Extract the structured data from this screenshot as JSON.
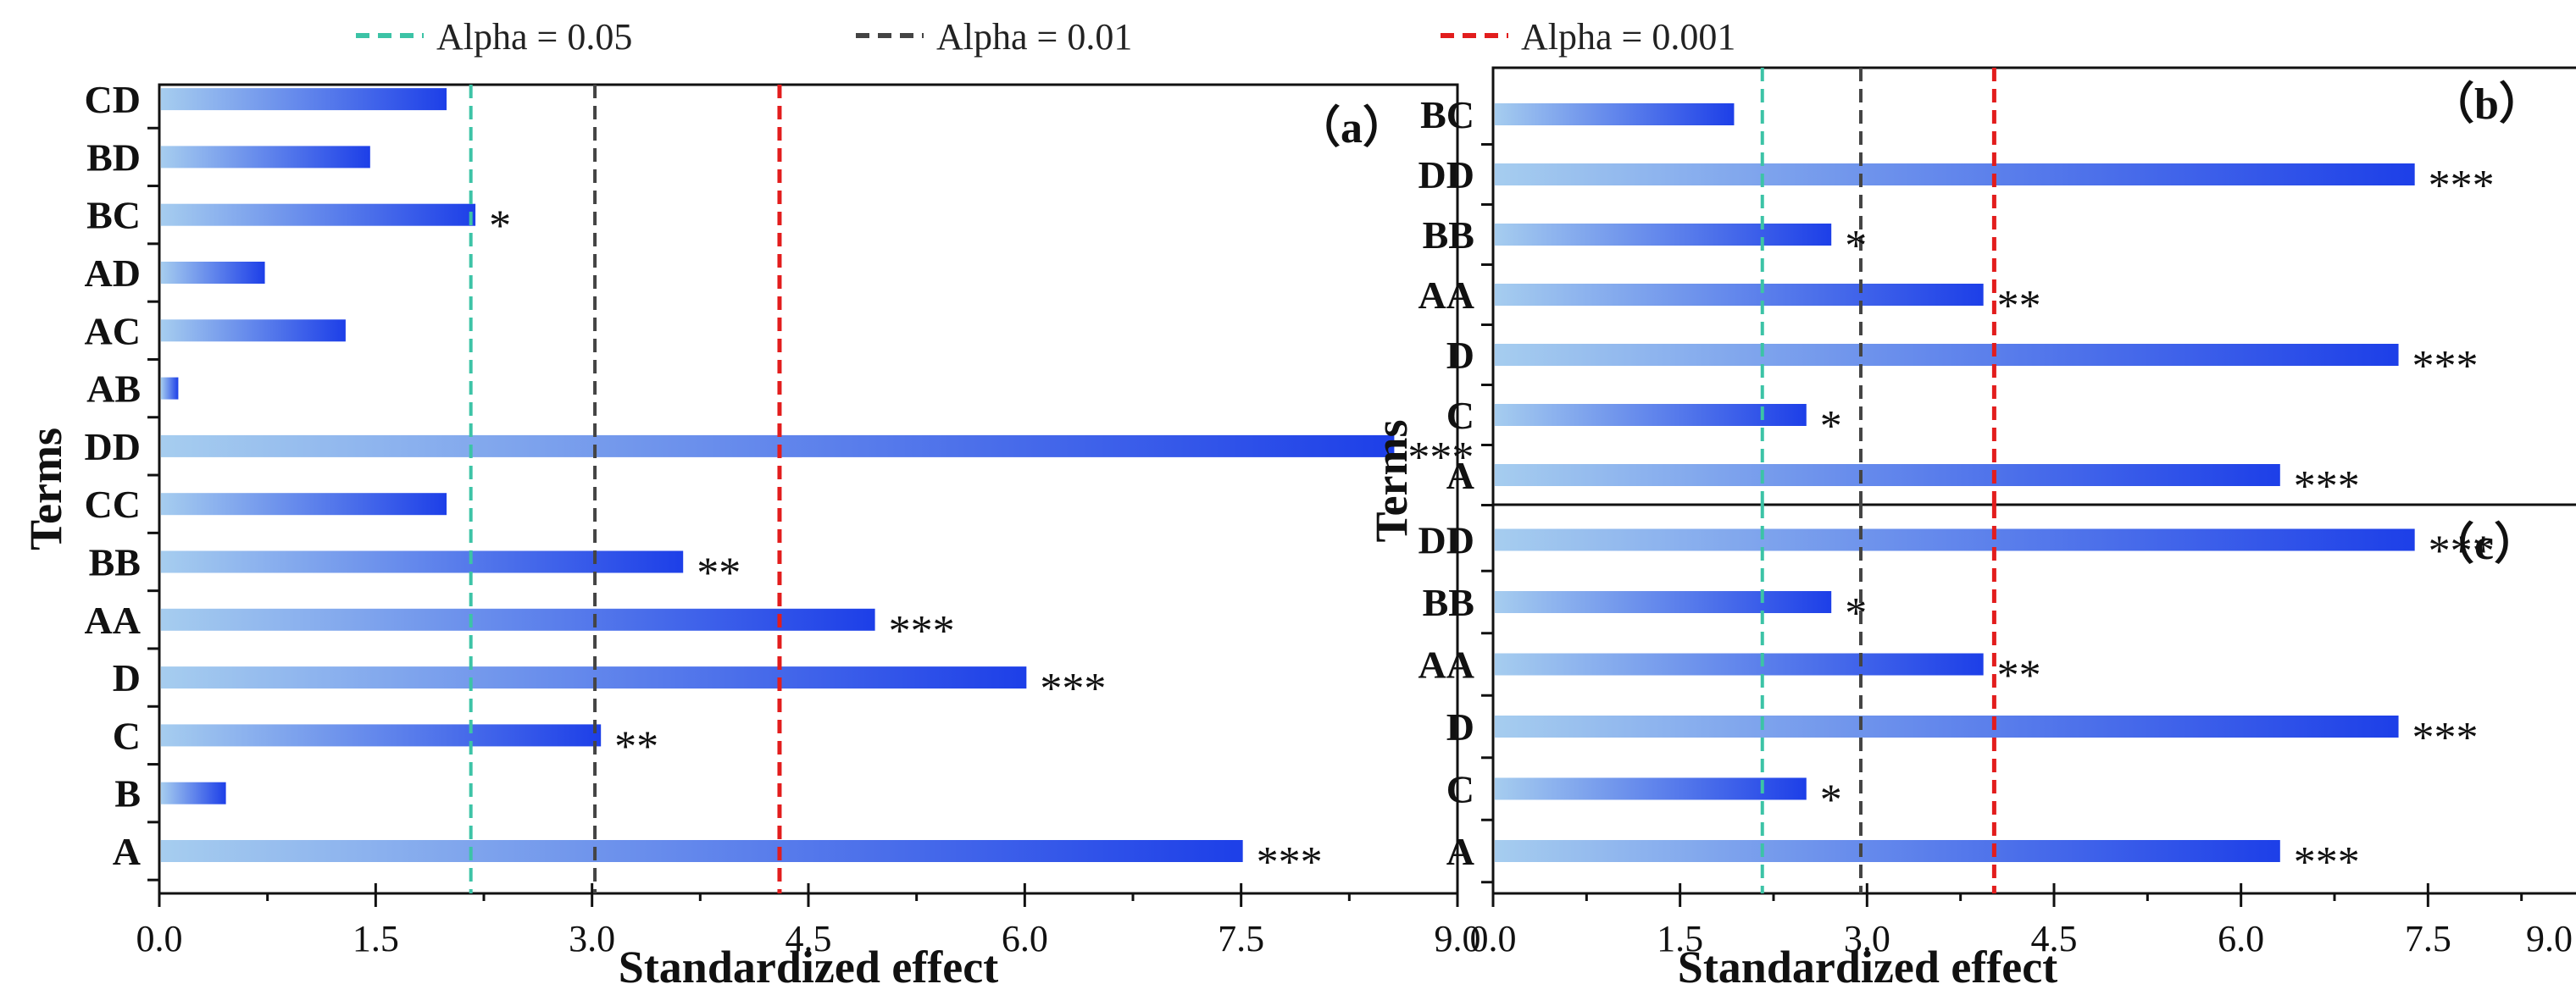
{
  "chart_data": [
    {
      "id": "a",
      "type": "bar",
      "orientation": "horizontal",
      "panel_label": "（a）",
      "xlabel": "Standardized effect",
      "ylabel": "Terms",
      "xlim": [
        0,
        9
      ],
      "xticks": [
        "0.0",
        "1.5",
        "3.0",
        "4.5",
        "6.0",
        "7.5",
        "9.0"
      ],
      "categories": [
        "A",
        "B",
        "C",
        "D",
        "AA",
        "BB",
        "CC",
        "DD",
        "AB",
        "AC",
        "AD",
        "BC",
        "BD",
        "CD"
      ],
      "values": [
        7.5,
        0.45,
        3.05,
        6.0,
        4.95,
        3.62,
        1.98,
        8.55,
        0.12,
        1.28,
        0.72,
        2.18,
        1.45,
        1.98
      ],
      "significance": [
        "***",
        "",
        "**",
        "***",
        "***",
        "**",
        "",
        "***",
        "",
        "",
        "",
        "*",
        "",
        ""
      ],
      "thresholds": [
        {
          "label": "Alpha = 0.05",
          "value": 2.16,
          "color": "#3cc3a6"
        },
        {
          "label": "Alpha = 0.01",
          "value": 3.02,
          "color": "#444444"
        },
        {
          "label": "Alpha = 0.001",
          "value": 4.3,
          "color": "#e21d1d"
        }
      ]
    },
    {
      "id": "b",
      "type": "bar",
      "orientation": "horizontal",
      "panel_label": "（b）",
      "xlim": [
        0,
        9
      ],
      "categories": [
        "A",
        "C",
        "D",
        "AA",
        "BB",
        "DD",
        "BC"
      ],
      "values": [
        6.3,
        2.5,
        7.25,
        3.92,
        2.7,
        7.38,
        1.92
      ],
      "significance": [
        "***",
        "*",
        "***",
        "**",
        "*",
        "***",
        ""
      ],
      "thresholds": [
        {
          "label": "Alpha = 0.05",
          "value": 2.16,
          "color": "#3cc3a6"
        },
        {
          "label": "Alpha = 0.01",
          "value": 2.95,
          "color": "#444444"
        },
        {
          "label": "Alpha = 0.001",
          "value": 4.02,
          "color": "#e21d1d"
        }
      ]
    },
    {
      "id": "c",
      "type": "bar",
      "orientation": "horizontal",
      "panel_label": "（c）",
      "xlabel": "Standardized effect",
      "ylabel": "Terms",
      "xlim": [
        0,
        9
      ],
      "xticks": [
        "0.0",
        "1.5",
        "3.0",
        "4.5",
        "6.0",
        "7.5",
        "9.0"
      ],
      "categories": [
        "A",
        "C",
        "D",
        "AA",
        "BB",
        "DD"
      ],
      "values": [
        6.3,
        2.5,
        7.25,
        3.92,
        2.7,
        7.38
      ],
      "significance": [
        "***",
        "*",
        "***",
        "**",
        "*",
        "***"
      ],
      "thresholds": [
        {
          "label": "Alpha = 0.05",
          "value": 2.16,
          "color": "#3cc3a6"
        },
        {
          "label": "Alpha = 0.01",
          "value": 2.95,
          "color": "#444444"
        },
        {
          "label": "Alpha = 0.001",
          "value": 4.02,
          "color": "#e21d1d"
        }
      ]
    }
  ],
  "legend": [
    {
      "label": "Alpha = 0.05",
      "color": "#3cc3a6"
    },
    {
      "label": "Alpha = 0.01",
      "color": "#444444"
    },
    {
      "label": "Alpha = 0.001",
      "color": "#e21d1d"
    }
  ],
  "colors": {
    "bar_start": "#a6cdef",
    "bar_end": "#1d3fe8",
    "axis": "#111111"
  }
}
